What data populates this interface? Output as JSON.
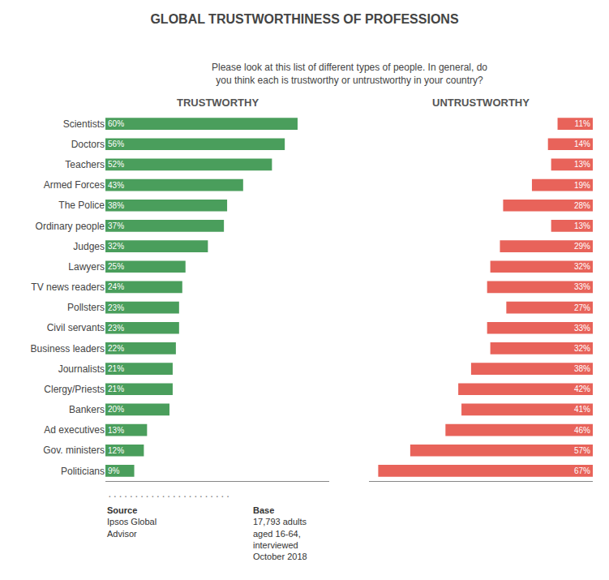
{
  "chart_data": {
    "type": "bar",
    "orientation": "horizontal",
    "title": "GLOBAL TRUSTWORTHINESS OF PROFESSIONS",
    "subtitle": "Please look at this list of different types of people. In general, do\nyou think each is trustworthy or untrustworthy in your country?",
    "categories": [
      "Scientists",
      "Doctors",
      "Teachers",
      "Armed Forces",
      "The Police",
      "Ordinary people",
      "Judges",
      "Lawyers",
      "TV news readers",
      "Pollsters",
      "Civil servants",
      "Business leaders",
      "Journalists",
      "Clergy/Priests",
      "Bankers",
      "Ad executives",
      "Gov. ministers",
      "Politicians"
    ],
    "series": [
      {
        "name": "TRUSTWORTHY",
        "color": "#4a9e5c",
        "values": [
          60,
          56,
          52,
          43,
          38,
          37,
          32,
          25,
          24,
          23,
          23,
          22,
          21,
          21,
          20,
          13,
          12,
          9
        ],
        "value_labels": [
          "60%",
          "56%",
          "52%",
          "43%",
          "38%",
          "37%",
          "32%",
          "25%",
          "24%",
          "23%",
          "23%",
          "22%",
          "21%",
          "21%",
          "20%",
          "13%",
          "12%",
          "9%"
        ]
      },
      {
        "name": "UNTRUSTWORTHY",
        "color": "#e8635a",
        "values": [
          11,
          14,
          13,
          19,
          28,
          13,
          29,
          32,
          33,
          27,
          33,
          32,
          38,
          42,
          41,
          46,
          57,
          67
        ],
        "value_labels": [
          "11%",
          "14%",
          "13%",
          "19%",
          "28%",
          "13%",
          "29%",
          "32%",
          "33%",
          "27%",
          "33%",
          "32%",
          "38%",
          "42%",
          "41%",
          "46%",
          "57%",
          "67%"
        ]
      }
    ],
    "xlim": [
      0,
      70
    ],
    "data_labels": true,
    "tick_labels": "y",
    "grid": false,
    "annotations": [
      ".......................",
      "Source",
      "Ipsos Global\nAdvisor",
      "Base",
      "17,793 adults\naged 16-64,\ninterviewed\nOctober 2018"
    ]
  }
}
